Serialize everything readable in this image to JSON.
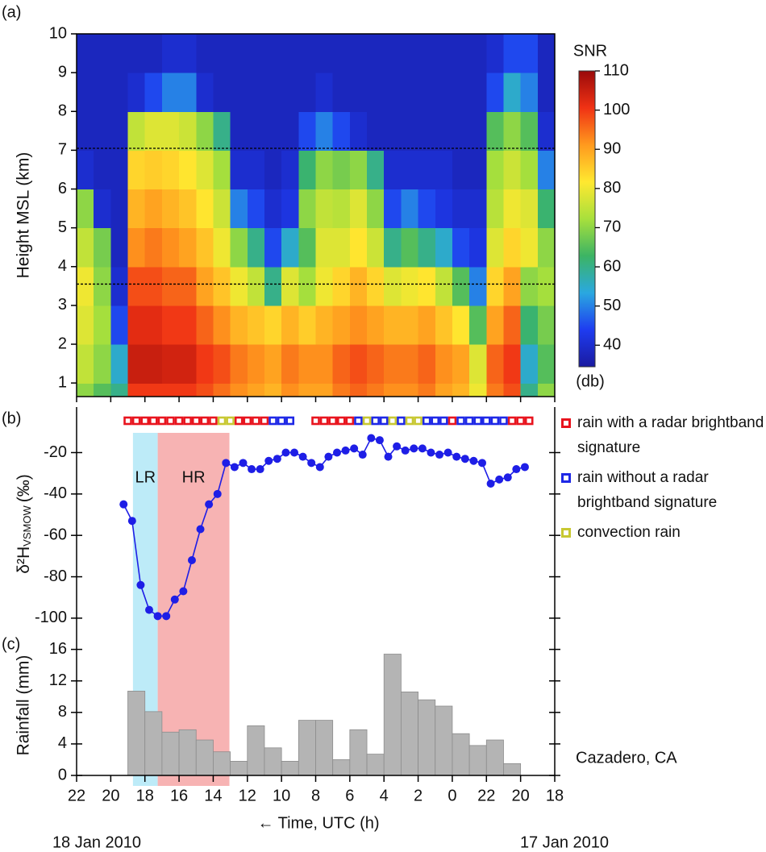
{
  "chart_data": [
    {
      "type": "heatmap",
      "panel_label": "(a)",
      "ylabel": "Height MSL (km)",
      "x_edges": [
        46,
        45,
        44,
        43,
        42,
        41,
        40,
        39,
        38,
        37,
        36,
        35,
        34,
        33,
        32,
        31,
        30,
        29,
        28,
        27,
        26,
        25,
        24,
        23,
        22,
        21,
        20,
        19,
        18
      ],
      "y_edges": [
        0.65,
        1,
        2,
        3,
        4,
        5,
        6,
        7,
        8,
        9,
        10
      ],
      "values": [
        [
          70,
          75,
          78,
          80,
          75,
          70,
          40,
          38,
          38,
          38
        ],
        [
          65,
          70,
          72,
          70,
          68,
          40,
          38,
          38,
          38,
          38
        ],
        [
          60,
          55,
          45,
          40,
          38,
          38,
          38,
          38,
          38,
          38
        ],
        [
          100,
          105,
          102,
          98,
          92,
          88,
          84,
          75,
          40,
          38
        ],
        [
          100,
          105,
          102,
          98,
          94,
          90,
          85,
          78,
          45,
          38
        ],
        [
          100,
          104,
          100,
          96,
          92,
          88,
          84,
          78,
          50,
          40
        ],
        [
          100,
          104,
          100,
          96,
          90,
          86,
          82,
          76,
          50,
          40
        ],
        [
          98,
          100,
          96,
          90,
          86,
          82,
          78,
          70,
          40,
          38
        ],
        [
          95,
          98,
          92,
          86,
          80,
          76,
          72,
          60,
          38,
          38
        ],
        [
          92,
          94,
          88,
          80,
          70,
          50,
          40,
          38,
          38,
          38
        ],
        [
          90,
          92,
          86,
          75,
          60,
          45,
          40,
          38,
          38,
          38
        ],
        [
          88,
          90,
          84,
          60,
          45,
          40,
          38,
          38,
          38,
          38
        ],
        [
          92,
          94,
          88,
          78,
          55,
          42,
          40,
          38,
          38,
          38
        ],
        [
          90,
          92,
          85,
          72,
          65,
          70,
          62,
          45,
          38,
          38
        ],
        [
          90,
          92,
          88,
          80,
          78,
          75,
          70,
          50,
          40,
          38
        ],
        [
          94,
          96,
          90,
          84,
          78,
          74,
          68,
          45,
          38,
          38
        ],
        [
          96,
          98,
          92,
          88,
          82,
          78,
          70,
          40,
          38,
          38
        ],
        [
          94,
          96,
          90,
          84,
          76,
          70,
          60,
          38,
          38,
          38
        ],
        [
          92,
          94,
          88,
          78,
          60,
          45,
          40,
          38,
          38,
          38
        ],
        [
          92,
          94,
          88,
          80,
          65,
          50,
          40,
          38,
          38,
          38
        ],
        [
          94,
          96,
          90,
          82,
          60,
          45,
          40,
          38,
          38,
          38
        ],
        [
          90,
          92,
          86,
          75,
          55,
          42,
          40,
          38,
          38,
          38
        ],
        [
          88,
          90,
          82,
          65,
          45,
          40,
          38,
          38,
          38,
          38
        ],
        [
          80,
          78,
          65,
          50,
          42,
          40,
          38,
          38,
          38,
          38
        ],
        [
          94,
          96,
          90,
          84,
          78,
          74,
          72,
          65,
          45,
          40
        ],
        [
          98,
          100,
          96,
          90,
          84,
          80,
          76,
          70,
          55,
          45
        ],
        [
          60,
          55,
          62,
          70,
          80,
          78,
          72,
          65,
          50,
          45
        ],
        [
          70,
          65,
          68,
          72,
          70,
          62,
          50,
          40,
          38,
          38
        ]
      ],
      "xlim": [
        46,
        18
      ],
      "ylim": [
        0.65,
        10
      ],
      "yticks": [
        1,
        2,
        3,
        4,
        5,
        6,
        7,
        8,
        9,
        10
      ],
      "hlines": [
        7.05,
        3.55
      ],
      "colorbar": {
        "title": "SNR",
        "unit_label": "(db)",
        "clim": [
          34.5,
          110
        ],
        "ticks": [
          40,
          50,
          60,
          70,
          80,
          90,
          100,
          110
        ],
        "colormap": [
          "#1a1aa0",
          "#1e3cf0",
          "#2aa8e0",
          "#3cb464",
          "#a8e03c",
          "#ffe830",
          "#ff9a1e",
          "#f03214",
          "#9a0a0a"
        ]
      }
    },
    {
      "type": "line",
      "panel_label": "(b)",
      "ylabel": {
        "symbol": "δ²H",
        "subscript": "VSMOW",
        "unit": "(‰)"
      },
      "x": [
        43.25,
        42.75,
        42.25,
        41.75,
        41.25,
        40.75,
        40.25,
        39.75,
        39.25,
        38.75,
        38.25,
        37.75,
        37.25,
        36.75,
        36.25,
        35.75,
        35.25,
        34.75,
        34.25,
        33.75,
        33.25,
        32.75,
        32.25,
        31.75,
        31.25,
        30.75,
        30.25,
        29.75,
        29.25,
        28.75,
        28.25,
        27.75,
        27.25,
        26.75,
        26.25,
        25.75,
        25.25,
        24.75,
        24.25,
        23.75,
        23.25,
        22.75,
        22.25,
        21.75,
        21.25,
        20.75,
        20.25,
        19.75
      ],
      "values": [
        -45,
        -53,
        -84,
        -96,
        -99,
        -99,
        -91,
        -87,
        -72,
        -57,
        -45,
        -40,
        -25,
        -27,
        -25,
        -28,
        -28,
        -24,
        -23,
        -20,
        -20,
        -22,
        -25,
        -27,
        -22,
        -20,
        -19,
        -18,
        -21,
        -13,
        -14,
        -22,
        -17,
        -19,
        -18,
        -18,
        -20,
        -21,
        -20,
        -22,
        -23,
        -24,
        -25,
        -35,
        -33,
        -32,
        -28,
        -27
      ],
      "color": "#1e1ee6",
      "xlim": [
        46,
        18
      ],
      "ylim": [
        -109,
        2
      ],
      "yticks": [
        -20,
        -40,
        -60,
        -80,
        -100
      ],
      "shaded_spans": [
        {
          "label": "LR",
          "color": "#bdebf8",
          "xrange": [
            42.7,
            41.25
          ]
        },
        {
          "label": "HR",
          "color": "#f7b3b3",
          "xrange": [
            41.25,
            37.05
          ]
        }
      ],
      "rain_types": [
        {
          "name": "rain with a radar brightband signature",
          "color": "#e8141e",
          "x": [
            43,
            42.5,
            42,
            41.5,
            41,
            40.5,
            40,
            39.5,
            39,
            38.5,
            38,
            36.5,
            36,
            35.5,
            35,
            32,
            31.5,
            31,
            30.5,
            30,
            24,
            20.5,
            20,
            19.5
          ]
        },
        {
          "name": "rain without a radar brightband signature",
          "color": "#1e28e6",
          "x": [
            34.5,
            34,
            33.5,
            29.5,
            28.5,
            28,
            27,
            25.5,
            25,
            24.5,
            23.5,
            23,
            22.5,
            22,
            21.5,
            21
          ]
        },
        {
          "name": "convection rain",
          "color": "#c8c832",
          "x": [
            37.5,
            37,
            29,
            27.5,
            26.5,
            26
          ]
        }
      ]
    },
    {
      "type": "histogram",
      "panel_label": "(c)",
      "ylabel": "Rainfall (mm)",
      "bins": [
        43,
        42,
        41,
        40,
        39,
        38,
        37,
        36,
        35,
        34,
        33,
        32,
        31,
        30,
        29,
        28,
        27,
        26,
        25,
        24,
        23,
        22,
        21,
        20
      ],
      "values": [
        10.7,
        8.1,
        5.5,
        5.8,
        4.5,
        3.0,
        1.8,
        6.3,
        3.5,
        1.8,
        7.0,
        7.0,
        2.0,
        5.8,
        2.7,
        15.4,
        10.6,
        9.6,
        8.8,
        5.3,
        3.8,
        4.5,
        1.5
      ],
      "color": "#b4b4b4",
      "xlim": [
        46,
        18
      ],
      "ylim": [
        0,
        17.6
      ],
      "yticks": [
        0,
        4,
        8,
        12,
        16
      ],
      "xticks": [
        {
          "value": 46,
          "label": "22"
        },
        {
          "value": 44,
          "label": "20"
        },
        {
          "value": 42,
          "label": "18"
        },
        {
          "value": 40,
          "label": "16"
        },
        {
          "value": 38,
          "label": "14"
        },
        {
          "value": 36,
          "label": "12"
        },
        {
          "value": 34,
          "label": "10"
        },
        {
          "value": 32,
          "label": "8"
        },
        {
          "value": 30,
          "label": "6"
        },
        {
          "value": 28,
          "label": "4"
        },
        {
          "value": 26,
          "label": "2"
        },
        {
          "value": 24,
          "label": "0"
        },
        {
          "value": 22,
          "label": "22"
        },
        {
          "value": 20,
          "label": "20"
        },
        {
          "value": 18,
          "label": "18"
        }
      ],
      "xlabel": "← Time, UTC (h)",
      "annotation": "Cazadero, CA",
      "date_labels": [
        "18 Jan 2010",
        "17 Jan 2010"
      ]
    }
  ]
}
